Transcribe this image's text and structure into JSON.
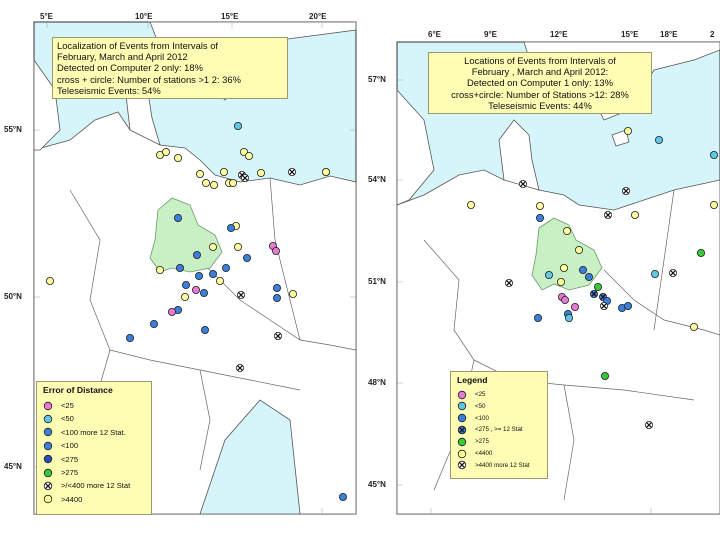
{
  "colors": {
    "sea": "#d6f5fa",
    "land": "#ffffff",
    "region": "#c9efc4",
    "box": "#fffcb4",
    "pink": "#e87ad6",
    "cyan": "#5ec8e6",
    "blue": "#3b7fdc",
    "darkblue": "#2450c0",
    "green": "#38c838",
    "yellow": "#ffff9e"
  },
  "map1": {
    "title_lines": [
      "Localization of Events from Intervals of",
      "February, March and April 2012",
      "Detected on Computer 2 only: 18%",
      "cross + circle: Number of stations >1 2: 36%",
      "Teleseismic Events: 54%"
    ],
    "lon_ticks": [
      "5°E",
      "10°E",
      "15°E",
      "20°E"
    ],
    "lat_ticks": [
      "55°N",
      "50°N",
      "45°N"
    ],
    "legend": {
      "title": "Error of Distance",
      "items": [
        {
          "label": "<25",
          "symbol": "pink"
        },
        {
          "label": "<50",
          "symbol": "cyan"
        },
        {
          "label": "<100 more 12 Stat.",
          "symbol": "blue"
        },
        {
          "label": "<100",
          "symbol": "blue"
        },
        {
          "label": "<275",
          "symbol": "darkblue"
        },
        {
          "label": ">275",
          "symbol": "green"
        },
        {
          "label": ">/<400 more 12 Stat",
          "symbol": "cross"
        },
        {
          "label": ">4400",
          "symbol": "yellow"
        }
      ]
    }
  },
  "map2": {
    "title_lines": [
      "Locations of Events from Intervals of",
      "February , March and April 2012:",
      "Detected on Computer 1 only: 13%",
      "cross+circle: Number of Stations >12: 28%",
      "Teleseismic Events: 44%"
    ],
    "lon_ticks": [
      "6°E",
      "9°E",
      "12°E",
      "15°E",
      "18°E",
      "2"
    ],
    "lat_ticks": [
      "57°N",
      "54°N",
      "51°N",
      "48°N",
      "45°N"
    ],
    "legend": {
      "title": "Legend",
      "items": [
        {
          "label": "<25",
          "symbol": "pink"
        },
        {
          "label": "<50",
          "symbol": "cyan"
        },
        {
          "label": "<100",
          "symbol": "blue"
        },
        {
          "label": "<275 , >= 12 Stat",
          "symbol": "blue-cross"
        },
        {
          "label": ">275",
          "symbol": "green"
        },
        {
          "label": "<4400",
          "symbol": "yellow"
        },
        {
          "label": ">4400 more 12 Stat",
          "symbol": "cross"
        }
      ]
    }
  }
}
